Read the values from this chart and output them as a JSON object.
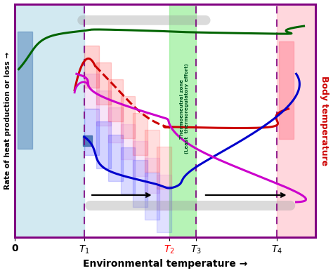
{
  "xlabel": "Environmental temperature →",
  "ylabel_left": "Rate of heat production or loss →",
  "ylabel_right": "Body temperature",
  "xlim": [
    0,
    7.8
  ],
  "ylim": [
    0,
    10
  ],
  "T1": 1.8,
  "T2": 4.0,
  "T3": 4.7,
  "T4": 6.8,
  "bg_left_color": "#ADD8E6",
  "bg_right_color": "#FFB6C1",
  "bg_mid_color": "#90EE90",
  "border_color": "#800080",
  "dashed_color": "#800080",
  "green_line_color": "#006400",
  "red_line_color": "#CC0000",
  "blue_line_color": "#0000CC",
  "magenta_line_color": "#CC00CC",
  "T2_color": "#FF0000",
  "ylabel_right_color": "#CC0000"
}
